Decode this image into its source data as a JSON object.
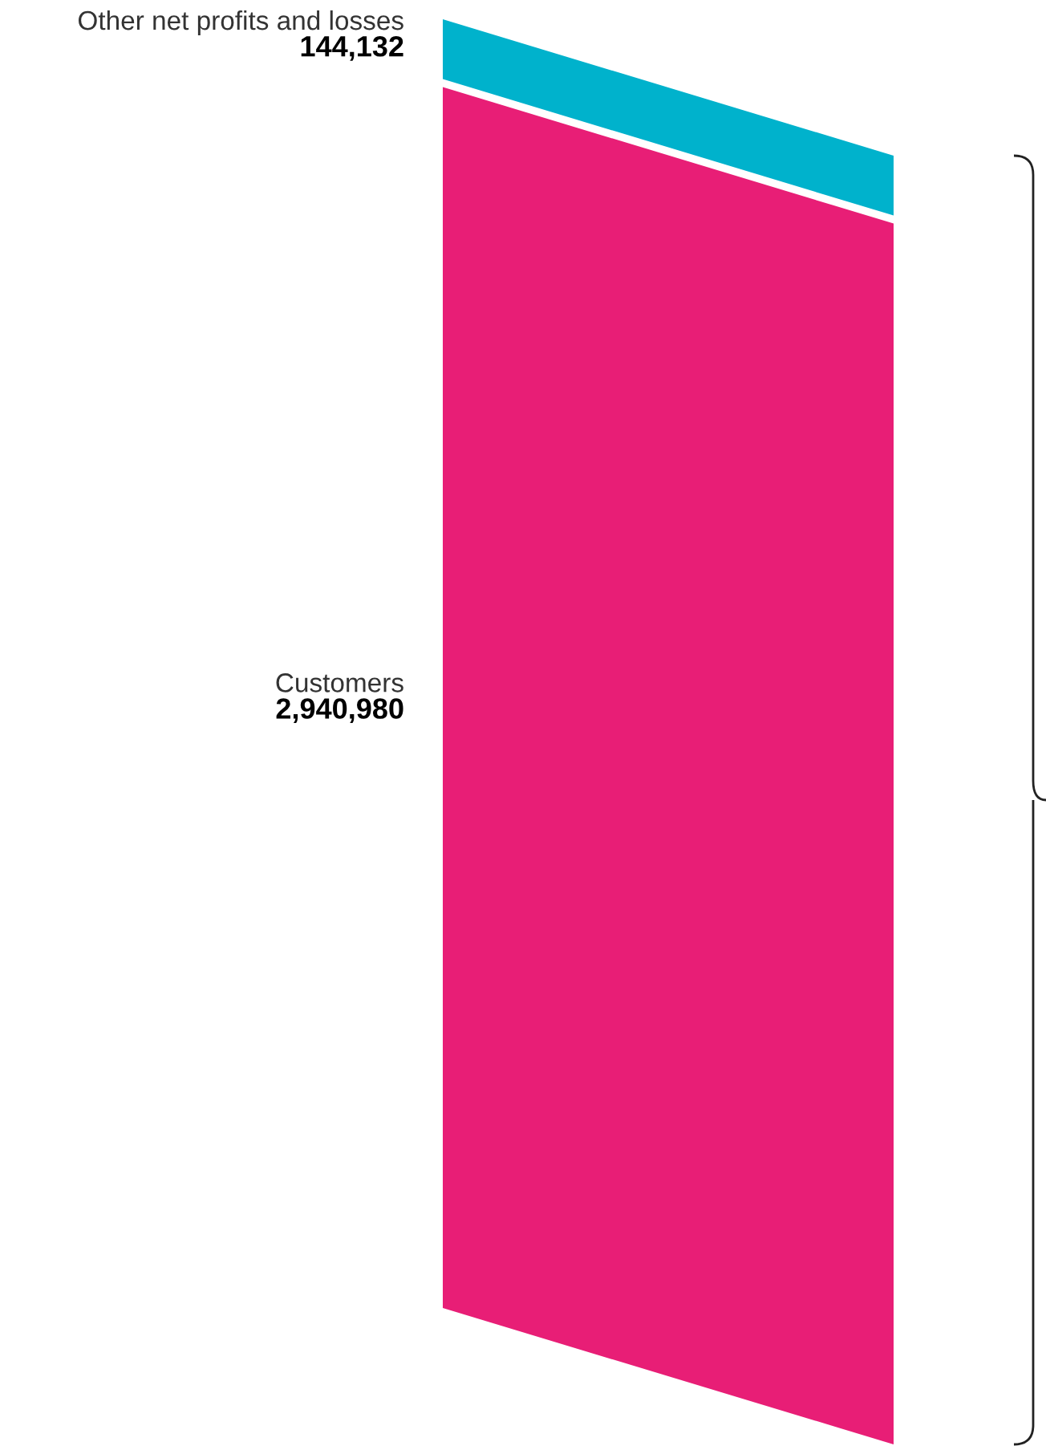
{
  "chart_data": {
    "type": "other",
    "categories": [
      "Other net profits and losses",
      "Customers"
    ],
    "values": [
      144132,
      2940980
    ],
    "colors": [
      "#00b2cc",
      "#e81e76"
    ],
    "value_labels": [
      "144,132",
      "2,940,980"
    ]
  }
}
